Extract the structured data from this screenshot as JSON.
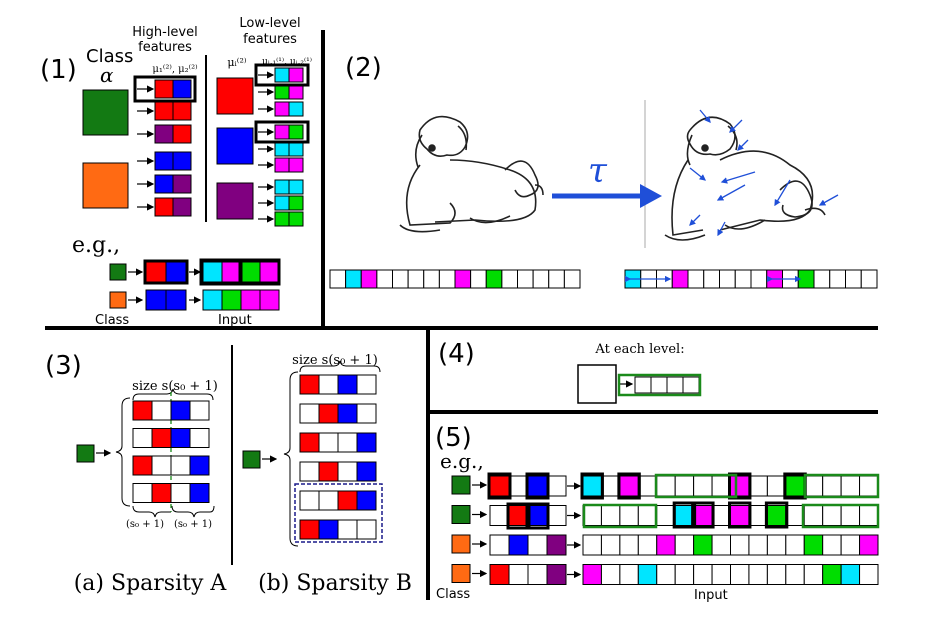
{
  "panel1": {
    "label": "(1)",
    "class_label": "Class",
    "alpha": "α",
    "high_level": [
      "High-level",
      "features"
    ],
    "low_level": [
      "Low-level",
      "features"
    ],
    "mu_high": "μ₁⁽²⁾, μ₂⁽²⁾",
    "mu_i": "μᵢ⁽²⁾",
    "mu_low": "μᵢ,₁⁽¹⁾, μᵢ,₂⁽¹⁾",
    "eg": "e.g.,",
    "class_caption": "Class",
    "input_caption": "Input"
  },
  "panel2": {
    "label": "(2)",
    "tau": "τ"
  },
  "panel3": {
    "label": "(3)",
    "size_a": "size s(s₀ + 1)",
    "brace_left": "(s₀ + 1)",
    "brace_right": "(s₀ + 1)",
    "caption_a": "(a) Sparsity A",
    "size_b": "size s(s₀ + 1)",
    "caption_b": "(b) Sparsity B"
  },
  "panel4": {
    "label": "(4)",
    "at_each_level": "At each level:"
  },
  "panel5": {
    "label": "(5)",
    "eg": "e.g.,",
    "class_caption": "Class",
    "input_caption": "Input"
  }
}
